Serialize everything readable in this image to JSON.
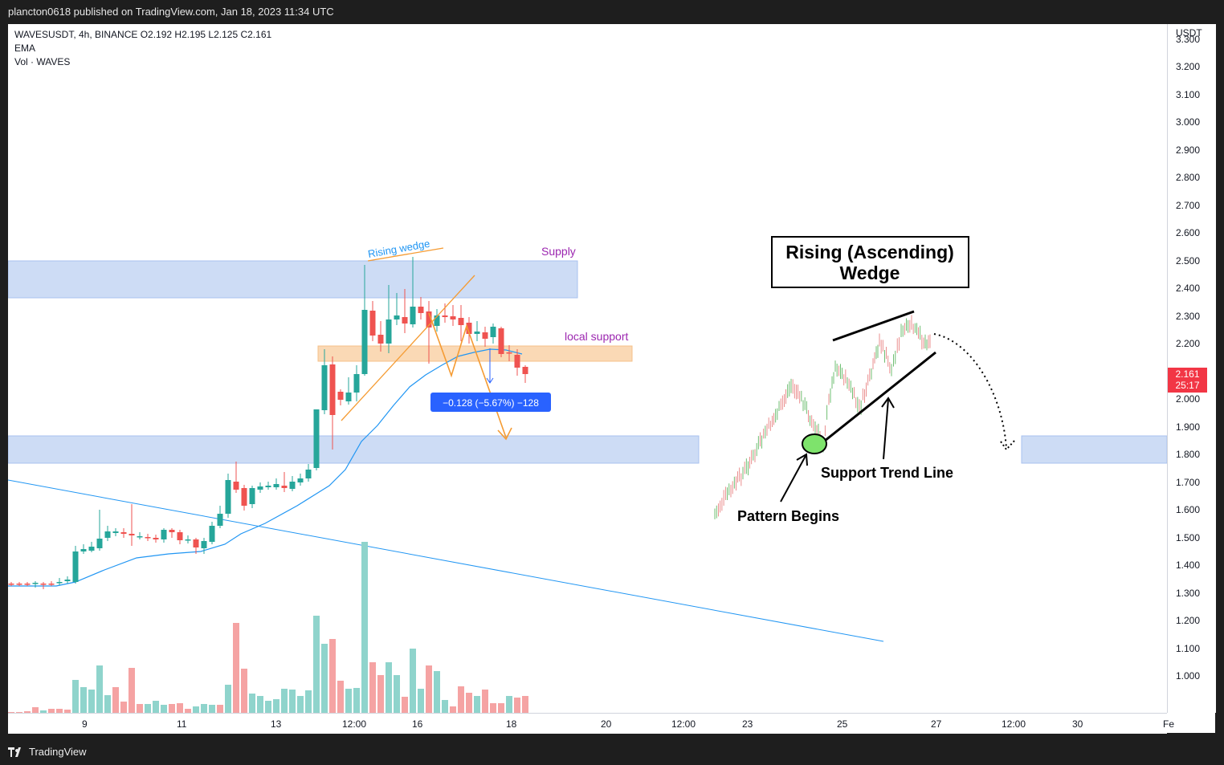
{
  "header": {
    "publisher": "plancton0618 published on TradingView.com, Jan 18, 2023 11:34 UTC"
  },
  "legend": {
    "symbol_line": "WAVESUSDT, 4h, BINANCE  O2.192  H2.195  L2.125  C2.161",
    "ema": "EMA",
    "volume": "Vol · WAVES"
  },
  "price_axis": {
    "currency": "USDT",
    "labels": [
      "3.300",
      "3.200",
      "3.100",
      "3.000",
      "2.900",
      "2.800",
      "2.700",
      "2.600",
      "2.500",
      "2.400",
      "2.300",
      "2.200",
      "2.100",
      "2.000",
      "1.900",
      "1.800",
      "1.700",
      "1.600",
      "1.500",
      "1.400",
      "1.300",
      "1.200",
      "1.100",
      "1.000"
    ],
    "last_price": "2.161",
    "countdown": "25:17"
  },
  "time_axis": {
    "labels": [
      "9",
      "11",
      "13",
      "12:00",
      "16",
      "18",
      "20",
      "12:00",
      "23",
      "25",
      "27",
      "12:00",
      "30",
      "Fe"
    ]
  },
  "annotations": {
    "rising_wedge": "Rising wedge",
    "supply": "Supply",
    "local_support": "local support",
    "measure": "−0.128 (−5.67%) −128",
    "wedge_title_line1": "Rising (Ascending)",
    "wedge_title_line2": "Wedge",
    "support_trend_line": "Support Trend Line",
    "pattern_begins": "Pattern Begins"
  },
  "footer": {
    "brand": "TradingView"
  },
  "colors": {
    "bull": "#26a69a",
    "bear": "#ef5350",
    "bull_volume": "#8fd4cc",
    "bear_volume": "#f5a3a3",
    "zone_blue": "#cddcf5",
    "zone_orange": "#fad9b5",
    "ema": "#2196f3",
    "orange_lines": "#f59b32",
    "label_purple": "#9c27b0",
    "last_price": "#f23645",
    "measure_bg": "#2962ff"
  }
}
